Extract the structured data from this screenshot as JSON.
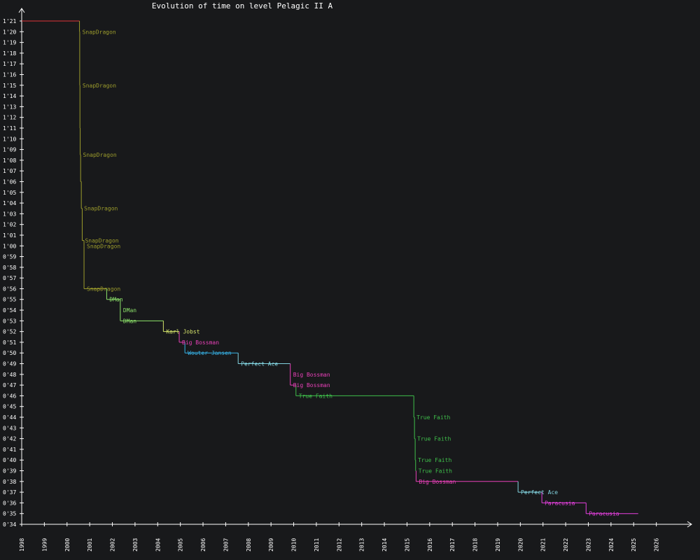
{
  "chart_data": {
    "type": "line",
    "title": "Evolution of time on level Pelagic II A",
    "xlabel": "",
    "ylabel": "",
    "xlim": [
      1998,
      2027
    ],
    "ylim": [
      34,
      81
    ],
    "x_ticks": [
      "1998",
      "1999",
      "2000",
      "2001",
      "2002",
      "2003",
      "2004",
      "2005",
      "2006",
      "2007",
      "2008",
      "2009",
      "2010",
      "2011",
      "2012",
      "2013",
      "2014",
      "2015",
      "2016",
      "2017",
      "2018",
      "2019",
      "2020",
      "2021",
      "2022",
      "2023",
      "2024",
      "2025",
      "2026"
    ],
    "y_ticks": [
      {
        "value": 34,
        "label": "0'34"
      },
      {
        "value": 35,
        "label": "0'35"
      },
      {
        "value": 36,
        "label": "0'36"
      },
      {
        "value": 37,
        "label": "0'37"
      },
      {
        "value": 38,
        "label": "0'38"
      },
      {
        "value": 39,
        "label": "0'39"
      },
      {
        "value": 40,
        "label": "0'40"
      },
      {
        "value": 41,
        "label": "0'41"
      },
      {
        "value": 42,
        "label": "0'42"
      },
      {
        "value": 43,
        "label": "0'43"
      },
      {
        "value": 44,
        "label": "0'44"
      },
      {
        "value": 45,
        "label": "0'45"
      },
      {
        "value": 46,
        "label": "0'46"
      },
      {
        "value": 47,
        "label": "0'47"
      },
      {
        "value": 48,
        "label": "0'48"
      },
      {
        "value": 49,
        "label": "0'49"
      },
      {
        "value": 50,
        "label": "0'50"
      },
      {
        "value": 51,
        "label": "0'51"
      },
      {
        "value": 52,
        "label": "0'52"
      },
      {
        "value": 53,
        "label": "0'53"
      },
      {
        "value": 54,
        "label": "0'54"
      },
      {
        "value": 55,
        "label": "0'55"
      },
      {
        "value": 56,
        "label": "0'56"
      },
      {
        "value": 57,
        "label": "0'57"
      },
      {
        "value": 58,
        "label": "0'58"
      },
      {
        "value": 59,
        "label": "0'59"
      },
      {
        "value": 60,
        "label": "1'00"
      },
      {
        "value": 61,
        "label": "1'01"
      },
      {
        "value": 62,
        "label": "1'02"
      },
      {
        "value": 63,
        "label": "1'03"
      },
      {
        "value": 64,
        "label": "1'04"
      },
      {
        "value": 65,
        "label": "1'05"
      },
      {
        "value": 66,
        "label": "1'06"
      },
      {
        "value": 67,
        "label": "1'07"
      },
      {
        "value": 68,
        "label": "1'08"
      },
      {
        "value": 69,
        "label": "1'09"
      },
      {
        "value": 70,
        "label": "1'10"
      },
      {
        "value": 71,
        "label": "1'11"
      },
      {
        "value": 72,
        "label": "1'12"
      },
      {
        "value": 73,
        "label": "1'13"
      },
      {
        "value": 74,
        "label": "1'14"
      },
      {
        "value": 75,
        "label": "1'15"
      },
      {
        "value": 76,
        "label": "1'16"
      },
      {
        "value": 77,
        "label": "1'17"
      },
      {
        "value": 78,
        "label": "1'18"
      },
      {
        "value": 79,
        "label": "1'19"
      },
      {
        "value": 80,
        "label": "1'20"
      },
      {
        "value": 81,
        "label": "1'21"
      }
    ],
    "end_x": 2025.2,
    "records": [
      {
        "x": 1998.0,
        "y": 81.0,
        "label": "",
        "color": "#e0353a"
      },
      {
        "x": 2000.55,
        "y": 80.0,
        "label": "SnapDragon",
        "color": "#9c9c2c"
      },
      {
        "x": 2000.56,
        "y": 75.0,
        "label": "SnapDragon",
        "color": "#9c9c2c"
      },
      {
        "x": 2000.57,
        "y": 71.0,
        "label": "",
        "color": "#9c9c2c"
      },
      {
        "x": 2000.58,
        "y": 68.5,
        "label": "SnapDragon",
        "color": "#9c9c2c"
      },
      {
        "x": 2000.6,
        "y": 66.0,
        "label": "",
        "color": "#9c9c2c"
      },
      {
        "x": 2000.63,
        "y": 63.5,
        "label": "SnapDragon",
        "color": "#9c9c2c"
      },
      {
        "x": 2000.67,
        "y": 60.5,
        "label": "SnapDragon",
        "color": "#9c9c2c"
      },
      {
        "x": 2000.75,
        "y": 60.0,
        "label": "SnapDragon",
        "color": "#9c9c2c"
      },
      {
        "x": 2000.75,
        "y": 56.0,
        "label": "SnapDragon",
        "color": "#9c9c2c"
      },
      {
        "x": 2001.75,
        "y": 55.0,
        "label": "DMan",
        "color": "#8de36a"
      },
      {
        "x": 2002.35,
        "y": 54.0,
        "label": "DMan",
        "color": "#8de36a"
      },
      {
        "x": 2002.35,
        "y": 53.0,
        "label": "DMan",
        "color": "#8de36a"
      },
      {
        "x": 2004.25,
        "y": 52.0,
        "label": "Karl Jobst",
        "color": "#d5e56b"
      },
      {
        "x": 2004.95,
        "y": 51.0,
        "label": "Big Bossman",
        "color": "#e740b7"
      },
      {
        "x": 2005.2,
        "y": 50.0,
        "label": "Wouter Jansen",
        "color": "#36b3e8"
      },
      {
        "x": 2007.55,
        "y": 49.0,
        "label": "Perfect Ace",
        "color": "#82d3df"
      },
      {
        "x": 2009.85,
        "y": 48.0,
        "label": "Big Bossman",
        "color": "#e740b7"
      },
      {
        "x": 2009.85,
        "y": 47.0,
        "label": "Big Bossman",
        "color": "#e740b7"
      },
      {
        "x": 2010.1,
        "y": 46.0,
        "label": "True Faith",
        "color": "#3fbf4b"
      },
      {
        "x": 2015.3,
        "y": 44.0,
        "label": "True Faith",
        "color": "#3fbf4b"
      },
      {
        "x": 2015.33,
        "y": 42.0,
        "label": "True Faith",
        "color": "#3fbf4b"
      },
      {
        "x": 2015.36,
        "y": 40.0,
        "label": "True Faith",
        "color": "#3fbf4b"
      },
      {
        "x": 2015.38,
        "y": 39.0,
        "label": "True Faith",
        "color": "#3fbf4b"
      },
      {
        "x": 2015.4,
        "y": 38.0,
        "label": "Big Bossman",
        "color": "#e740b7"
      },
      {
        "x": 2019.9,
        "y": 37.0,
        "label": "Perfect Ace",
        "color": "#82d3df"
      },
      {
        "x": 2020.95,
        "y": 36.0,
        "label": "Paracusia",
        "color": "#e740e0"
      },
      {
        "x": 2022.9,
        "y": 35.0,
        "label": "Paracusia",
        "color": "#e740e0"
      }
    ]
  }
}
